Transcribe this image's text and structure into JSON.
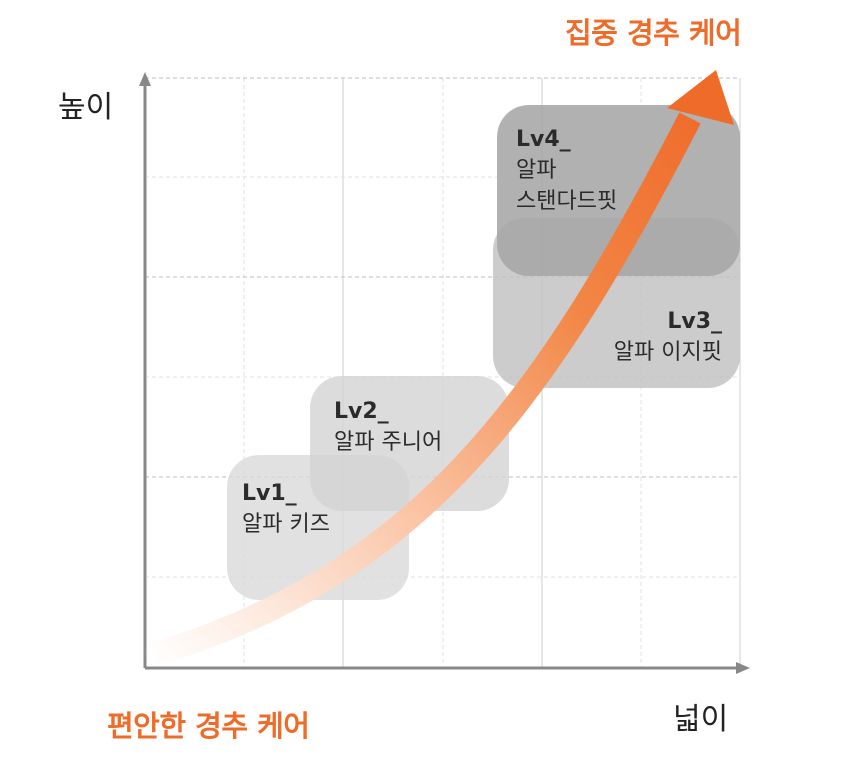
{
  "y_axis_label": "높이",
  "x_axis_label": "넓이",
  "top_label": "집중 경추 케어",
  "bottom_label": "편안한 경추 케어",
  "levels": [
    {
      "level": "Lv1_",
      "name": "알파 키즈",
      "fill": "#dcdcdc"
    },
    {
      "level": "Lv2_",
      "name": "알파 주니어",
      "fill": "#d6d6d6"
    },
    {
      "level": "Lv3_",
      "name": "알파 이지핏",
      "fill": "#bdbdbd"
    },
    {
      "level": "Lv4_",
      "name": "알파",
      "name2": "스탠다드핏",
      "fill": "#a4a4a4"
    }
  ],
  "colors": {
    "accent": "#ef6b2a",
    "axis": "#888888",
    "grid": "#d7d7d7"
  }
}
